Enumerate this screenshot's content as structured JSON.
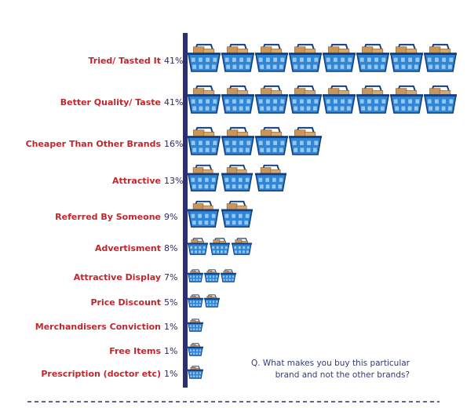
{
  "chart_data": {
    "type": "bar",
    "categories": [
      "Tried/ Tasted It",
      "Better Quality/ Taste",
      "Cheaper Than Other Brands",
      "Attractive",
      "Referred By Someone",
      "Advertisment",
      "Attractive Display",
      "Price Discount",
      "Merchandisers Conviction",
      "Free Items",
      "Prescription (doctor etc)"
    ],
    "values": [
      41,
      41,
      16,
      13,
      9,
      8,
      7,
      5,
      1,
      1,
      1
    ],
    "value_labels": [
      "41%",
      "41%",
      "16%",
      "13%",
      "9%",
      "8%",
      "7%",
      "5%",
      "1%",
      "1%",
      "1%"
    ],
    "icon_counts": [
      8,
      8,
      4,
      3,
      2,
      3,
      3,
      2,
      1,
      1,
      1
    ],
    "unit": "%",
    "mark_icon": "shopping-basket-icon",
    "annotation": "Q. What makes you buy this particular brand and not the other brands?",
    "grid": false
  },
  "text": {
    "question_line1": "Q. What makes you buy this particular",
    "question_line2": "brand and not the other brands?"
  },
  "colors": {
    "category_label": "#c0272d",
    "value_label": "#2e2a62",
    "axis": "#2b2f73",
    "basket_blue": "#2f86d6",
    "basket_dark": "#123f82",
    "box_tan": "#c8955a",
    "question_text": "#333a78",
    "dashed_rule": "#2b2f73"
  }
}
